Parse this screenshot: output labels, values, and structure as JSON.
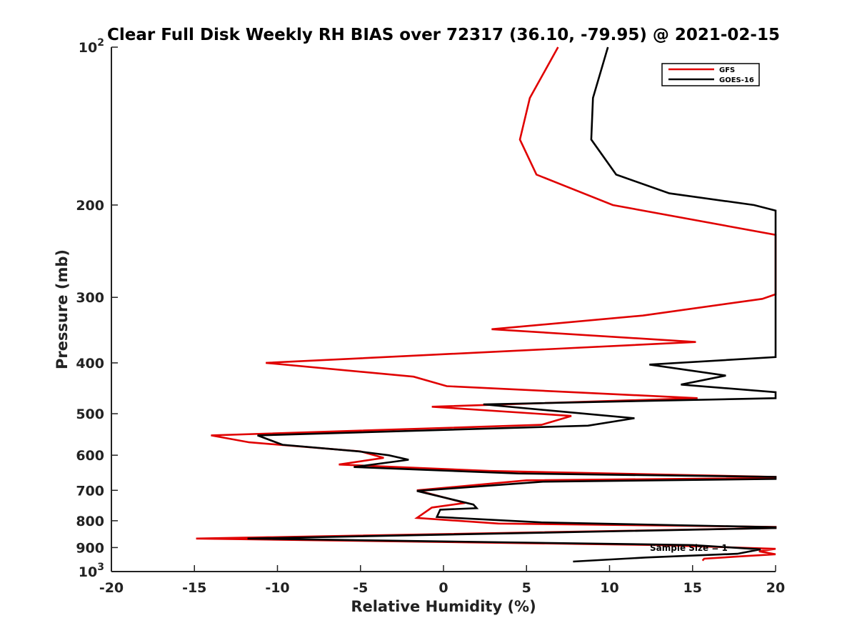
{
  "chart_data": {
    "type": "line",
    "title": "Clear Full Disk Weekly RH BIAS over 72317 (36.10, -79.95) @ 2021-02-15",
    "xlabel": "Relative Humidity (%)",
    "ylabel": "Pressure (mb)",
    "xlim": [
      -20,
      20
    ],
    "ylim": [
      100,
      1000
    ],
    "y_scale": "log",
    "y_reversed": true,
    "x_ticks": [
      "-20",
      "-15",
      "-10",
      "-5",
      "0",
      "5",
      "10",
      "15",
      "20"
    ],
    "y_ticks": [
      {
        "value": 100,
        "base": "10",
        "exp": "2"
      },
      {
        "value": 200,
        "label": "200"
      },
      {
        "value": 300,
        "label": "300"
      },
      {
        "value": 400,
        "label": "400"
      },
      {
        "value": 500,
        "label": "500"
      },
      {
        "value": 600,
        "label": "600"
      },
      {
        "value": 700,
        "label": "700"
      },
      {
        "value": 800,
        "label": "800"
      },
      {
        "value": 900,
        "label": "900"
      },
      {
        "value": 1000,
        "base": "10",
        "exp": "3"
      }
    ],
    "legend_position": "top-right",
    "grid": false,
    "annotation": "Sample Size = 1",
    "series": [
      {
        "name": "GFS",
        "color": "#e00000",
        "points": [
          [
            6.9,
            100
          ],
          [
            5.2,
            125
          ],
          [
            4.6,
            150
          ],
          [
            5.6,
            175
          ],
          [
            10.2,
            200
          ],
          [
            20.0,
            228
          ],
          [
            20.0,
            296
          ],
          [
            19.2,
            302
          ],
          [
            12.0,
            325
          ],
          [
            2.9,
            345
          ],
          [
            15.2,
            365
          ],
          [
            -10.7,
            400
          ],
          [
            -1.8,
            425
          ],
          [
            0.2,
            443
          ],
          [
            15.3,
            467
          ],
          [
            -0.7,
            485
          ],
          [
            7.7,
            505
          ],
          [
            5.9,
            525
          ],
          [
            -14.0,
            550
          ],
          [
            -11.7,
            567
          ],
          [
            -5.0,
            590
          ],
          [
            -3.6,
            607
          ],
          [
            -6.3,
            625
          ],
          [
            2.8,
            643
          ],
          [
            20.0,
            660
          ],
          [
            20.0,
            663
          ],
          [
            5.0,
            670
          ],
          [
            -1.6,
            700
          ],
          [
            1.3,
            740
          ],
          [
            -0.7,
            755
          ],
          [
            -1.6,
            790
          ],
          [
            3.3,
            810
          ],
          [
            20.0,
            822
          ],
          [
            20.0,
            826
          ],
          [
            -14.9,
            865
          ],
          [
            13.0,
            890
          ],
          [
            20.0,
            905
          ],
          [
            19.0,
            915
          ],
          [
            20.0,
            927
          ],
          [
            18.0,
            935
          ],
          [
            15.7,
            945
          ],
          [
            15.6,
            953
          ]
        ]
      },
      {
        "name": "GOES-16",
        "color": "#000000",
        "points": [
          [
            9.9,
            100
          ],
          [
            9.0,
            125
          ],
          [
            8.9,
            150
          ],
          [
            10.4,
            175
          ],
          [
            13.6,
            190
          ],
          [
            18.7,
            200
          ],
          [
            20.0,
            205
          ],
          [
            20.0,
            390
          ],
          [
            12.4,
            403
          ],
          [
            17.0,
            423
          ],
          [
            14.3,
            440
          ],
          [
            20.0,
            455
          ],
          [
            20.0,
            467
          ],
          [
            2.4,
            480
          ],
          [
            11.5,
            510
          ],
          [
            8.7,
            527
          ],
          [
            -11.2,
            550
          ],
          [
            -9.7,
            573
          ],
          [
            -5.1,
            590
          ],
          [
            -3.3,
            600
          ],
          [
            -2.1,
            612
          ],
          [
            -5.4,
            632
          ],
          [
            4.5,
            650
          ],
          [
            20.0,
            660
          ],
          [
            20.0,
            666
          ],
          [
            6.0,
            674
          ],
          [
            -1.6,
            702
          ],
          [
            1.8,
            745
          ],
          [
            2.0,
            757
          ],
          [
            -0.2,
            762
          ],
          [
            -0.4,
            787
          ],
          [
            5.9,
            806
          ],
          [
            20.0,
            823
          ],
          [
            20.0,
            826
          ],
          [
            -11.8,
            865
          ],
          [
            15.0,
            890
          ],
          [
            19.1,
            907
          ],
          [
            17.7,
            925
          ],
          [
            12.2,
            940
          ],
          [
            7.8,
            957
          ]
        ]
      }
    ]
  }
}
